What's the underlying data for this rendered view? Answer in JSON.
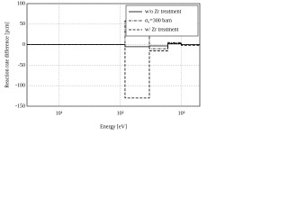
{
  "chart_data": {
    "type": "line",
    "x_label": "Energy [eV]",
    "y_label": "Reaction rate difference [pcm]",
    "x": [
      3,
      120,
      120,
      300,
      300,
      600,
      600,
      1000,
      1000,
      2000
    ],
    "series": [
      {
        "name": "w/o Zr treatment",
        "color": "#000000",
        "dash": "solid",
        "values": [
          0,
          0,
          -5,
          -5,
          -3,
          -3,
          2,
          2,
          0,
          0
        ]
      },
      {
        "name": "σ₀=300 barn",
        "color": "#000000",
        "dash": "dashdot",
        "values": [
          0,
          0,
          58,
          58,
          -10,
          -10,
          5,
          5,
          0,
          0
        ]
      },
      {
        "name": "w/ Zr treatment",
        "color": "#000000",
        "dash": "dashed",
        "values": [
          0,
          0,
          -130,
          -130,
          -15,
          -15,
          3,
          3,
          -2,
          -2
        ]
      }
    ],
    "xlim": [
      3,
      2000
    ],
    "xlog": true,
    "xticks": [
      {
        "value": 10,
        "label": "10¹"
      },
      {
        "value": 100,
        "label": "10²"
      },
      {
        "value": 1000,
        "label": "10³"
      }
    ],
    "ylim": [
      -150,
      100
    ],
    "yticks": [
      -150,
      -100,
      -50,
      0,
      50,
      100
    ],
    "grid": true,
    "legend": "upper right"
  }
}
